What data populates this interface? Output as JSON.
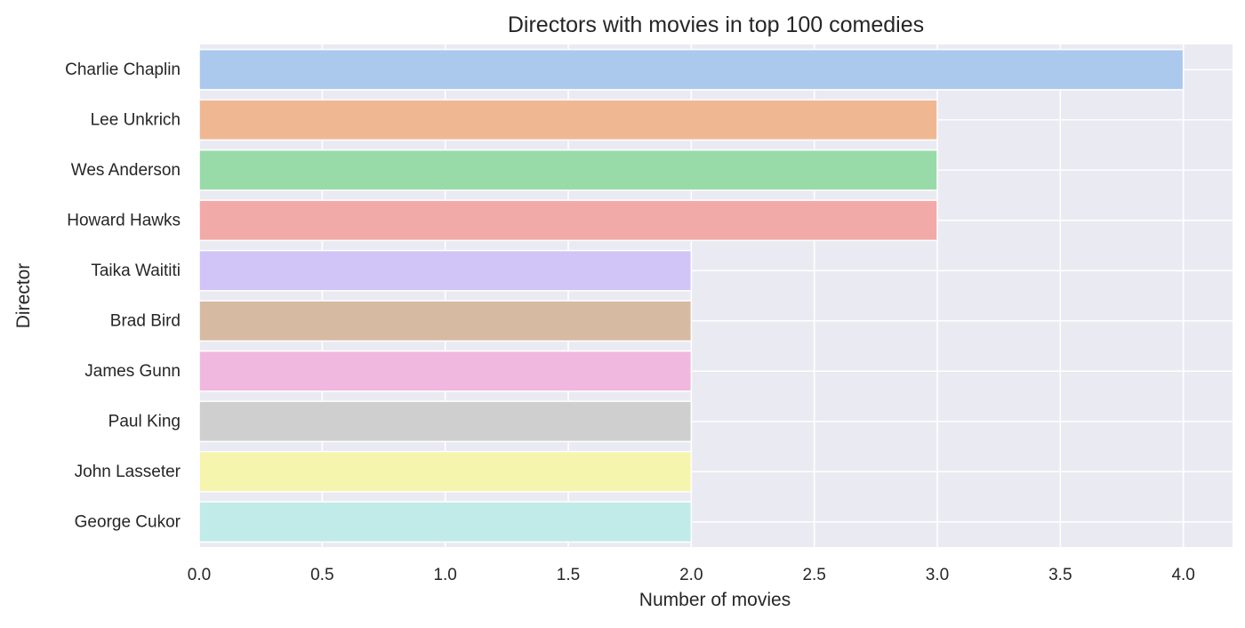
{
  "chart_data": {
    "type": "bar",
    "orientation": "horizontal",
    "title": "Directors with movies in top 100 comedies",
    "xlabel": "Number of movies",
    "ylabel": "Director",
    "categories": [
      "Charlie Chaplin",
      "Lee Unkrich",
      "Wes Anderson",
      "Howard Hawks",
      "Taika Waititi",
      "Brad Bird",
      "James Gunn",
      "Paul King",
      "John Lasseter",
      "George Cukor"
    ],
    "values": [
      4,
      3,
      3,
      3,
      2,
      2,
      2,
      2,
      2,
      2
    ],
    "colors": [
      "#abc9ed",
      "#f0b892",
      "#99dba8",
      "#f2aaa8",
      "#d1c4f7",
      "#d6baa1",
      "#f0b8de",
      "#cfcfcf",
      "#f5f5ad",
      "#c0ebe8"
    ],
    "xlim": [
      0,
      4.2
    ],
    "xticks": [
      "0.0",
      "0.5",
      "1.0",
      "1.5",
      "2.0",
      "2.5",
      "3.0",
      "3.5",
      "4.0"
    ],
    "grid": true,
    "plot_background": "#eaeaf2",
    "grid_color": "#ffffff"
  }
}
